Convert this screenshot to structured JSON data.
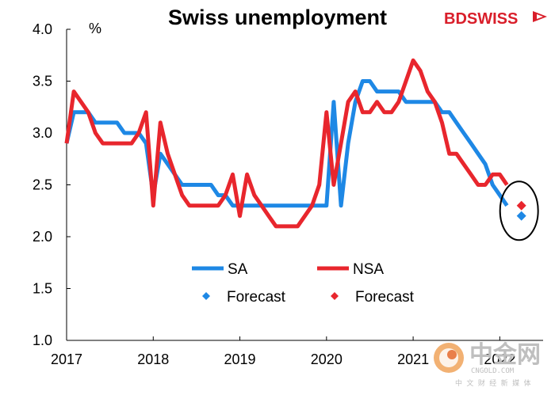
{
  "chart_data": {
    "type": "line",
    "title": "Swiss unemployment",
    "ylabel": "%",
    "xlabel": "",
    "ylim": [
      1.0,
      4.0
    ],
    "xlim": [
      2017.0,
      2022.5
    ],
    "yticks": [
      "1.0",
      "1.5",
      "2.0",
      "2.5",
      "3.0",
      "3.5",
      "4.0"
    ],
    "xticks": [
      "2017",
      "2018",
      "2019",
      "2020",
      "2021",
      "2022"
    ],
    "grid": false,
    "legend_position": "center",
    "series": [
      {
        "name": "SA",
        "color": "#1e88e5",
        "x": [
          2017.0,
          2017.083,
          2017.25,
          2017.333,
          2017.417,
          2017.5,
          2017.583,
          2017.667,
          2017.75,
          2017.833,
          2017.917,
          2018.0,
          2018.083,
          2018.167,
          2018.25,
          2018.333,
          2018.417,
          2018.5,
          2018.583,
          2018.667,
          2018.75,
          2018.833,
          2018.917,
          2019.0,
          2019.25,
          2019.5,
          2019.75,
          2019.917,
          2020.0,
          2020.083,
          2020.167,
          2020.25,
          2020.333,
          2020.417,
          2020.5,
          2020.583,
          2020.667,
          2020.75,
          2020.833,
          2020.917,
          2021.0,
          2021.083,
          2021.167,
          2021.25,
          2021.333,
          2021.417,
          2021.5,
          2021.583,
          2021.667,
          2021.75,
          2021.833,
          2021.917,
          2022.0,
          2022.083
        ],
        "values": [
          2.9,
          3.2,
          3.2,
          3.1,
          3.1,
          3.1,
          3.1,
          3.0,
          3.0,
          3.0,
          2.9,
          2.4,
          2.8,
          2.7,
          2.6,
          2.5,
          2.5,
          2.5,
          2.5,
          2.5,
          2.4,
          2.4,
          2.3,
          2.3,
          2.3,
          2.3,
          2.3,
          2.3,
          2.3,
          3.3,
          2.3,
          2.9,
          3.3,
          3.5,
          3.5,
          3.4,
          3.4,
          3.4,
          3.4,
          3.3,
          3.3,
          3.3,
          3.3,
          3.3,
          3.2,
          3.2,
          3.1,
          3.0,
          2.9,
          2.8,
          2.7,
          2.5,
          2.4,
          2.3
        ]
      },
      {
        "name": "NSA",
        "color": "#e8262d",
        "x": [
          2017.0,
          2017.083,
          2017.167,
          2017.25,
          2017.333,
          2017.417,
          2017.5,
          2017.583,
          2017.667,
          2017.75,
          2017.833,
          2017.917,
          2018.0,
          2018.083,
          2018.167,
          2018.25,
          2018.333,
          2018.417,
          2018.5,
          2018.583,
          2018.667,
          2018.75,
          2018.833,
          2018.917,
          2019.0,
          2019.083,
          2019.167,
          2019.25,
          2019.333,
          2019.417,
          2019.5,
          2019.583,
          2019.667,
          2019.75,
          2019.833,
          2019.917,
          2020.0,
          2020.083,
          2020.167,
          2020.25,
          2020.333,
          2020.417,
          2020.5,
          2020.583,
          2020.667,
          2020.75,
          2020.833,
          2020.917,
          2021.0,
          2021.083,
          2021.167,
          2021.25,
          2021.333,
          2021.417,
          2021.5,
          2021.583,
          2021.667,
          2021.75,
          2021.833,
          2021.917,
          2022.0,
          2022.083
        ],
        "values": [
          2.9,
          3.4,
          3.3,
          3.2,
          3.0,
          2.9,
          2.9,
          2.9,
          2.9,
          2.9,
          3.0,
          3.2,
          2.3,
          3.1,
          2.8,
          2.6,
          2.4,
          2.3,
          2.3,
          2.3,
          2.3,
          2.3,
          2.4,
          2.6,
          2.2,
          2.6,
          2.4,
          2.3,
          2.2,
          2.1,
          2.1,
          2.1,
          2.1,
          2.2,
          2.3,
          2.5,
          3.2,
          2.5,
          2.9,
          3.3,
          3.4,
          3.2,
          3.2,
          3.3,
          3.2,
          3.2,
          3.3,
          3.5,
          3.7,
          3.6,
          3.4,
          3.3,
          3.1,
          2.8,
          2.8,
          2.7,
          2.6,
          2.5,
          2.5,
          2.6,
          2.6,
          2.5
        ]
      }
    ],
    "forecasts": [
      {
        "name": "Forecast",
        "color": "#1e88e5",
        "x": 2022.25,
        "value": 2.2
      },
      {
        "name": "Forecast",
        "color": "#e8262d",
        "x": 2022.25,
        "value": 2.3
      }
    ],
    "legend": [
      {
        "label": "SA",
        "kind": "line",
        "color": "#1e88e5"
      },
      {
        "label": "NSA",
        "kind": "line",
        "color": "#e8262d"
      },
      {
        "label": "Forecast",
        "kind": "marker",
        "color": "#1e88e5"
      },
      {
        "label": "Forecast",
        "kind": "marker",
        "color": "#e8262d"
      }
    ],
    "annotation": "ellipse around forecast points"
  },
  "logo": {
    "text": "BDSWISS",
    "color": "#d91e2a"
  },
  "watermark": {
    "main": "中金网",
    "sub": "CNGOLD.COM",
    "tagline": "中 文 财 经 新 媒 体"
  }
}
